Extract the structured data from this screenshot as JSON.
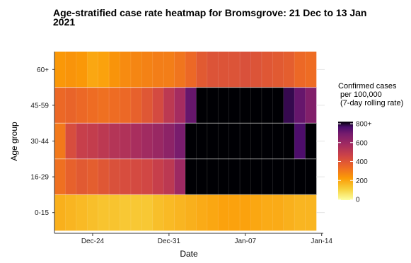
{
  "title": "Age-stratified case rate heatmap for Bromsgrove: 21 Dec to 13 Jan 2021",
  "chart_data": {
    "type": "heatmap",
    "xlabel": "Date",
    "ylabel": "Age group",
    "x_ticks": [
      "Dec-24",
      "Dec-31",
      "Jan-07",
      "Jan-14"
    ],
    "x_dates": [
      "Dec-21",
      "Dec-22",
      "Dec-23",
      "Dec-24",
      "Dec-25",
      "Dec-26",
      "Dec-27",
      "Dec-28",
      "Dec-29",
      "Dec-30",
      "Dec-31",
      "Jan-01",
      "Jan-02",
      "Jan-03",
      "Jan-04",
      "Jan-05",
      "Jan-06",
      "Jan-07",
      "Jan-08",
      "Jan-09",
      "Jan-10",
      "Jan-11",
      "Jan-12",
      "Jan-13"
    ],
    "y_categories": [
      "60+",
      "45-59",
      "30-44",
      "16-29",
      "0-15"
    ],
    "values": [
      [
        230,
        240,
        230,
        200,
        210,
        240,
        260,
        270,
        280,
        290,
        290,
        310,
        340,
        380,
        400,
        400,
        400,
        410,
        400,
        390,
        380,
        370,
        340,
        330
      ],
      [
        340,
        350,
        340,
        330,
        320,
        330,
        340,
        360,
        390,
        430,
        500,
        560,
        700,
        800,
        800,
        800,
        800,
        800,
        800,
        800,
        800,
        760,
        700,
        650
      ],
      [
        300,
        420,
        470,
        480,
        500,
        520,
        530,
        550,
        570,
        590,
        620,
        670,
        800,
        800,
        800,
        800,
        800,
        800,
        800,
        800,
        800,
        800,
        740,
        800
      ],
      [
        320,
        360,
        380,
        370,
        390,
        410,
        420,
        430,
        440,
        470,
        500,
        580,
        800,
        800,
        800,
        800,
        800,
        800,
        800,
        800,
        800,
        800,
        800,
        800
      ],
      [
        180,
        170,
        160,
        150,
        140,
        140,
        130,
        130,
        130,
        150,
        160,
        170,
        180,
        190,
        200,
        210,
        210,
        210,
        200,
        190,
        190,
        180,
        170,
        170
      ]
    ],
    "legend": {
      "title_lines": [
        "Confirmed cases",
        "per 100,000",
        "(7-day rolling rate)"
      ],
      "ticks": [
        "800+",
        "600",
        "400",
        "200",
        "0"
      ],
      "range": [
        0,
        800
      ]
    },
    "grid": true
  }
}
